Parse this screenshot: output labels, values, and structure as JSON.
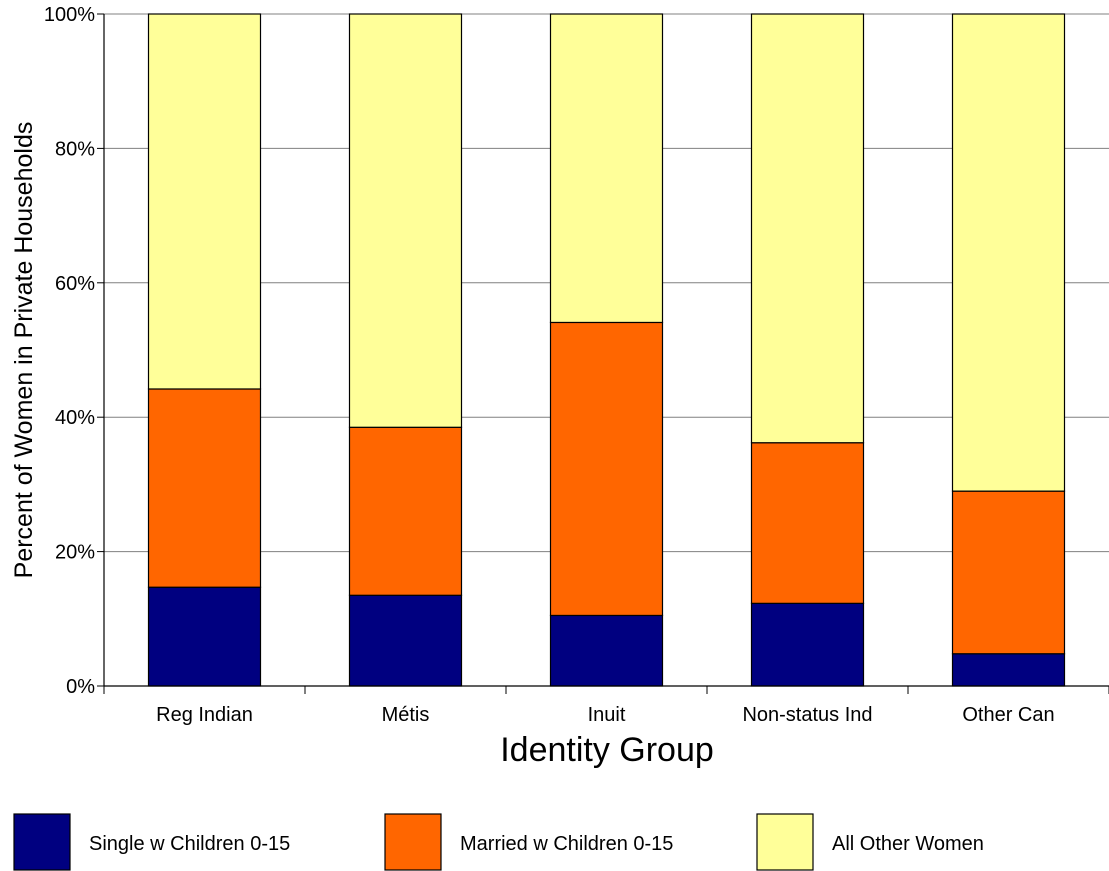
{
  "chart_data": {
    "type": "bar",
    "stacked": true,
    "categories": [
      "Reg Indian",
      "Métis",
      "Inuit",
      "Non-status Ind",
      "Other Can"
    ],
    "series": [
      {
        "name": "Single w Children 0-15",
        "color": "#000080",
        "values": [
          14.7,
          13.5,
          10.5,
          12.3,
          4.8
        ]
      },
      {
        "name": "Married w Children 0-15",
        "color": "#FF6600",
        "values": [
          29.5,
          25.0,
          43.6,
          23.9,
          24.2
        ]
      },
      {
        "name": "All Other Women",
        "color": "#FFFF99",
        "values": [
          55.8,
          61.5,
          45.9,
          63.8,
          71.0
        ]
      }
    ],
    "xlabel": "Identity Group",
    "ylabel": "Percent of Women in Private Households",
    "ylim": [
      0,
      100
    ],
    "yticks": [
      "0%",
      "20%",
      "40%",
      "60%",
      "80%",
      "100%"
    ],
    "grid": true,
    "legend_position": "bottom"
  }
}
